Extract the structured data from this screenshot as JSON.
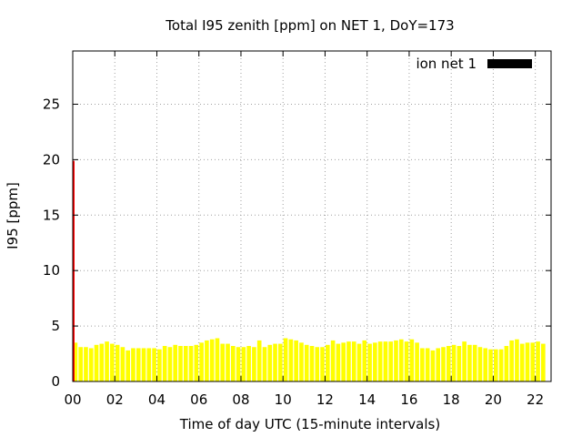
{
  "chart_data": {
    "type": "bar",
    "title": "Total I95 zenith [ppm] on NET 1, DoY=173",
    "xlabel": "Time of day UTC (15-minute intervals)",
    "ylabel": "I95 [ppm]",
    "xlim": [
      0,
      22.75
    ],
    "ylim": [
      0,
      29.8
    ],
    "xticks": [
      {
        "v": 0,
        "label": "00"
      },
      {
        "v": 2,
        "label": "02"
      },
      {
        "v": 4,
        "label": "04"
      },
      {
        "v": 6,
        "label": "06"
      },
      {
        "v": 8,
        "label": "08"
      },
      {
        "v": 10,
        "label": "10"
      },
      {
        "v": 12,
        "label": "12"
      },
      {
        "v": 14,
        "label": "14"
      },
      {
        "v": 16,
        "label": "16"
      },
      {
        "v": 18,
        "label": "18"
      },
      {
        "v": 20,
        "label": "20"
      },
      {
        "v": 22,
        "label": "22"
      }
    ],
    "yticks": [
      {
        "v": 0,
        "label": "0"
      },
      {
        "v": 5,
        "label": "5"
      },
      {
        "v": 10,
        "label": "10"
      },
      {
        "v": 15,
        "label": "15"
      },
      {
        "v": 20,
        "label": "20"
      },
      {
        "v": 25,
        "label": "25"
      }
    ],
    "grid": true,
    "legend": {
      "label": "ion net 1",
      "color": "#000000",
      "position": "top-right"
    },
    "bar_width_hours": 0.2,
    "colors": {
      "bars": "#ffff00",
      "spike": "#ff0000"
    },
    "spike": {
      "x": 0.0,
      "value": 19.9
    },
    "x_start": 0.125,
    "x_step": 0.25,
    "values": [
      3.5,
      3.1,
      3.1,
      3.0,
      3.3,
      3.4,
      3.6,
      3.4,
      3.3,
      3.1,
      2.8,
      3.0,
      3.0,
      3.0,
      3.0,
      3.0,
      2.9,
      3.2,
      3.1,
      3.3,
      3.2,
      3.2,
      3.2,
      3.3,
      3.5,
      3.7,
      3.8,
      3.9,
      3.4,
      3.4,
      3.2,
      3.1,
      3.1,
      3.2,
      3.1,
      3.7,
      3.1,
      3.3,
      3.4,
      3.4,
      3.9,
      3.8,
      3.7,
      3.5,
      3.3,
      3.2,
      3.1,
      3.1,
      3.3,
      3.7,
      3.4,
      3.5,
      3.6,
      3.6,
      3.4,
      3.7,
      3.4,
      3.5,
      3.6,
      3.6,
      3.6,
      3.7,
      3.8,
      3.6,
      3.8,
      3.5,
      3.0,
      3.0,
      2.8,
      3.0,
      3.1,
      3.2,
      3.3,
      3.2,
      3.6,
      3.3,
      3.3,
      3.1,
      3.0,
      2.9,
      2.9,
      2.9,
      3.2,
      3.7,
      3.8,
      3.4,
      3.5,
      3.5,
      3.6,
      3.4
    ]
  }
}
